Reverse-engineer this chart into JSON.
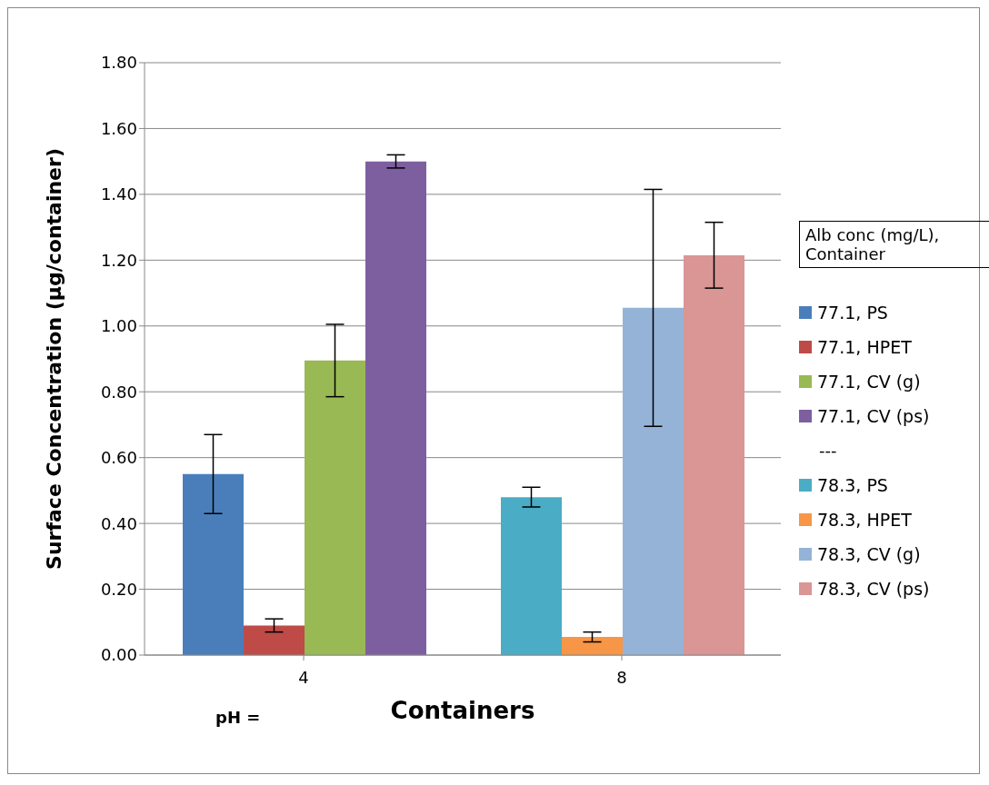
{
  "chart_data": {
    "type": "bar",
    "xlabel": "Containers",
    "ylabel": "Surface Concentration (µg/container)",
    "legend_title": "Alb conc (mg/L),\nContainer",
    "categories": [
      "4",
      "8"
    ],
    "series": [
      {
        "name": "77.1, PS",
        "color": "#4a7ebb",
        "values": [
          0.55,
          null
        ],
        "errors": [
          0.12,
          null
        ]
      },
      {
        "name": "77.1, HPET",
        "color": "#be4b48",
        "values": [
          0.09,
          null
        ],
        "errors": [
          0.02,
          null
        ]
      },
      {
        "name": "77.1, CV (g)",
        "color": "#98b954",
        "values": [
          0.895,
          null
        ],
        "errors": [
          0.11,
          null
        ]
      },
      {
        "name": "77.1, CV (ps)",
        "color": "#7d5fa0",
        "values": [
          1.5,
          null
        ],
        "errors": [
          0.02,
          null
        ]
      },
      {
        "name": "78.3, PS",
        "color": "#4bacc6",
        "values": [
          null,
          0.48
        ],
        "errors": [
          null,
          0.03
        ]
      },
      {
        "name": "78.3, HPET",
        "color": "#f79646",
        "values": [
          null,
          0.055
        ],
        "errors": [
          null,
          0.015
        ]
      },
      {
        "name": "78.3, CV (g)",
        "color": "#95b3d7",
        "values": [
          null,
          1.055
        ],
        "errors": [
          null,
          0.36
        ]
      },
      {
        "name": "78.3, CV (ps)",
        "color": "#d99694",
        "values": [
          null,
          1.215
        ],
        "errors": [
          null,
          0.1
        ]
      }
    ],
    "ylim": [
      0,
      1.8
    ],
    "yticks": [
      {
        "value": 0,
        "label": "0.00"
      },
      {
        "value": 0.2,
        "label": "0.20"
      },
      {
        "value": 0.4,
        "label": "0.40"
      },
      {
        "value": 0.6,
        "label": "0.60"
      },
      {
        "value": 0.8,
        "label": "0.80"
      },
      {
        "value": 1,
        "label": "1.00"
      },
      {
        "value": 1.2,
        "label": "1.20"
      },
      {
        "value": 1.4,
        "label": "1.40"
      },
      {
        "value": 1.6,
        "label": "1.60"
      },
      {
        "value": 1.8,
        "label": "1.80"
      }
    ],
    "grid": "y",
    "legend": "right",
    "annotations": [
      "pH =",
      "---"
    ]
  }
}
